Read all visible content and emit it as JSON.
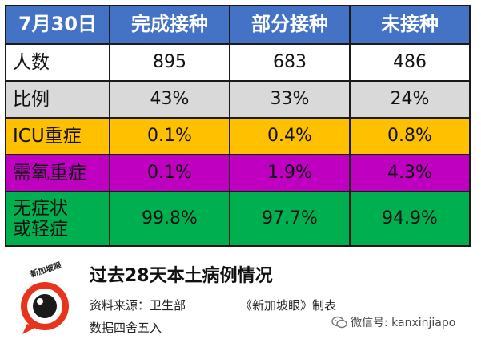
{
  "table": {
    "header": [
      "7月30日",
      "完成接种",
      "部分接种",
      "未接种"
    ],
    "rows": [
      {
        "label": "人数",
        "values": [
          "895",
          "683",
          "486"
        ]
      },
      {
        "label": "比例",
        "values": [
          "43%",
          "33%",
          "24%"
        ]
      },
      {
        "label": "ICU重症",
        "values": [
          "0.1%",
          "0.4%",
          "0.8%"
        ]
      },
      {
        "label": "需氧重症",
        "values": [
          "0.1%",
          "1.9%",
          "4.3%"
        ]
      },
      {
        "label_line1": "无症状",
        "label_line2": "或轻症",
        "values": [
          "99.8%",
          "97.7%",
          "94.9%"
        ]
      }
    ],
    "row_colors": [
      "#ffffff",
      "#d9d9d9",
      "#ffc000",
      "#c000c0",
      "#00b050"
    ],
    "header_color": "#4472c4"
  },
  "footer": {
    "logo_text": "新加坡眼",
    "title": "过去28天本土病例情况",
    "source": "资料来源：卫生部",
    "producer": "《新加坡眼》制表",
    "rounding_note": "数据四舍五入",
    "wechat": "微信号: kanxinjiapo"
  }
}
